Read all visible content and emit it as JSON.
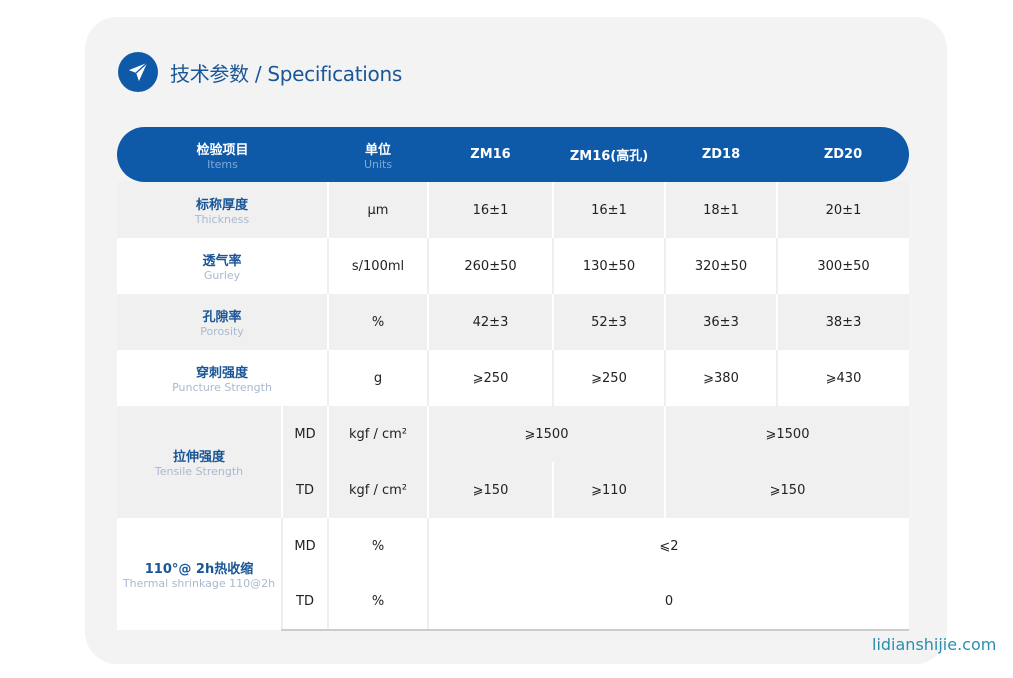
{
  "title": "技术参数 / Specifications",
  "header": {
    "items_cn": "检验项目",
    "items_en": "Items",
    "units_cn": "单位",
    "units_en": "Units",
    "models": [
      "ZM16",
      "ZM16(高孔)",
      "ZD18",
      "ZD20"
    ]
  },
  "rows": {
    "thickness": {
      "cn": "标称厚度",
      "en": "Thickness",
      "unit": "μm",
      "values": [
        "16±1",
        "16±1",
        "18±1",
        "20±1"
      ]
    },
    "gurley": {
      "cn": "透气率",
      "en": "Gurley",
      "unit": "s/100ml",
      "values": [
        "260±50",
        "130±50",
        "320±50",
        "300±50"
      ]
    },
    "porosity": {
      "cn": "孔隙率",
      "en": "Porosity",
      "unit": "%",
      "values": [
        "42±3",
        "52±3",
        "36±3",
        "38±3"
      ]
    },
    "puncture": {
      "cn": "穿刺强度",
      "en": "Puncture Strength",
      "unit": "g",
      "values": [
        "⩾250",
        "⩾250",
        "⩾380",
        "⩾430"
      ]
    },
    "tensile": {
      "cn": "拉伸强度",
      "en": "Tensile Strength",
      "md": "MD",
      "td": "TD",
      "unit": "kgf / cm²",
      "md_values": [
        "⩾1500",
        "⩾1500"
      ],
      "td_values": [
        "⩾150",
        "⩾110",
        "⩾150"
      ]
    },
    "thermal": {
      "cn": "110°@ 2h热收缩",
      "en": "Thermal shrinkage 110@2h",
      "md": "MD",
      "td": "TD",
      "unit": "%",
      "md_value": "⩽2",
      "td_value": "0"
    }
  },
  "watermark": "lidianshijie.com",
  "colors": {
    "brand": "#0f5aa8"
  }
}
